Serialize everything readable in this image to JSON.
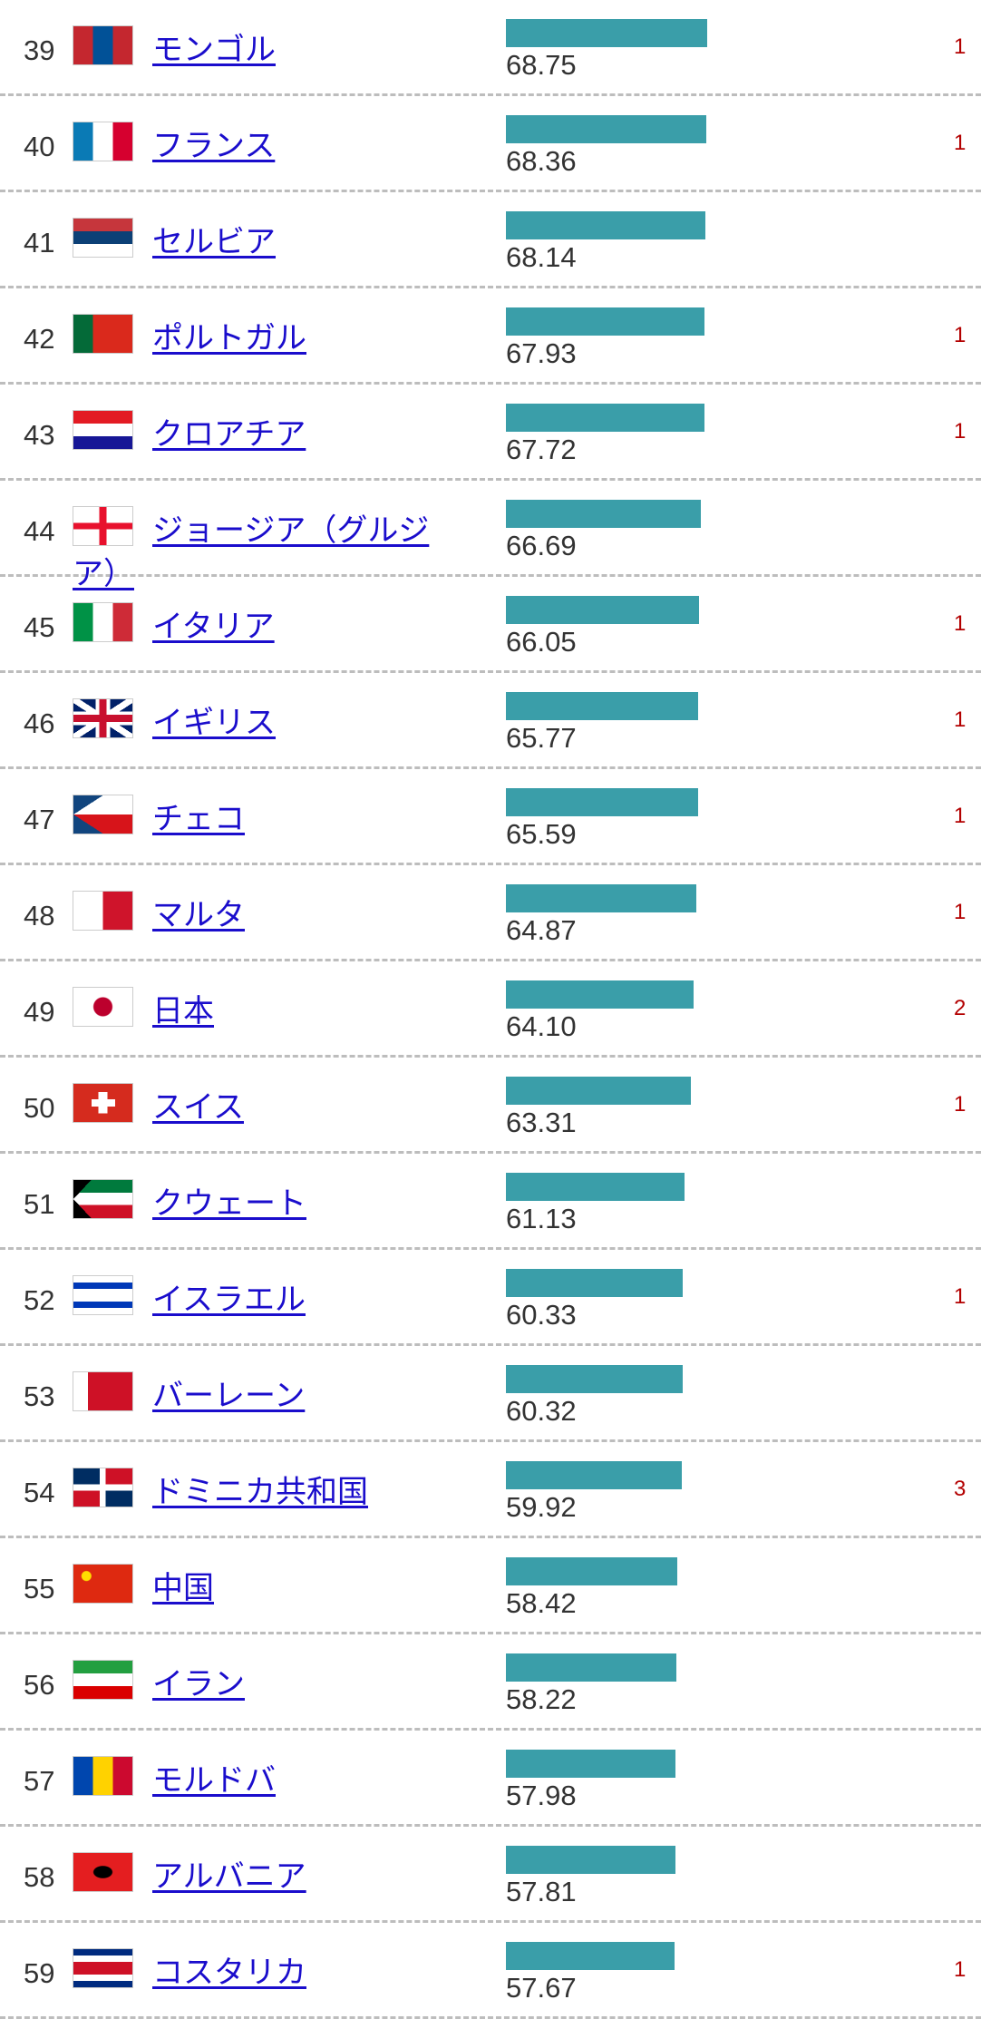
{
  "colors": {
    "bar": "#3a9ea9",
    "link": "#1a0dcc",
    "change": "#b30000"
  },
  "rows": [
    {
      "rank": "39",
      "name": "モンゴル",
      "value": "68.75",
      "change": "1",
      "flag": {
        "dir": "90deg",
        "colors": [
          "#c4272f",
          "#015197",
          "#c4272f"
        ]
      }
    },
    {
      "rank": "40",
      "name": "フランス",
      "value": "68.36",
      "change": "1",
      "flag": {
        "dir": "90deg",
        "colors": [
          "#0a7ab5",
          "#ffffff",
          "#d6002f"
        ]
      }
    },
    {
      "rank": "41",
      "name": "セルビア",
      "value": "68.14",
      "change": "",
      "flag": {
        "dir": "180deg",
        "colors": [
          "#c6363c",
          "#0c4076",
          "#ffffff"
        ]
      }
    },
    {
      "rank": "42",
      "name": "ポルトガル",
      "value": "67.93",
      "change": "1",
      "flag": {
        "dir": "90deg",
        "colors": [
          "#046a38",
          "#da291c",
          "#da291c"
        ]
      }
    },
    {
      "rank": "43",
      "name": "クロアチア",
      "value": "67.72",
      "change": "1",
      "flag": {
        "dir": "180deg",
        "colors": [
          "#e31b23",
          "#ffffff",
          "#171796"
        ]
      }
    },
    {
      "rank": "44",
      "name": "ジョージア（グルジア）",
      "value": "66.69",
      "change": "",
      "flag": {
        "dir": "cross",
        "colors": [
          "#ffffff",
          "#e8112d"
        ]
      }
    },
    {
      "rank": "45",
      "name": "イタリア",
      "value": "66.05",
      "change": "1",
      "flag": {
        "dir": "90deg",
        "colors": [
          "#009246",
          "#ffffff",
          "#ce2b37"
        ]
      }
    },
    {
      "rank": "46",
      "name": "イギリス",
      "value": "65.77",
      "change": "1",
      "flag": {
        "dir": "uk",
        "colors": [
          "#012169",
          "#ffffff",
          "#c8102e"
        ]
      }
    },
    {
      "rank": "47",
      "name": "チェコ",
      "value": "65.59",
      "change": "1",
      "flag": {
        "dir": "czech",
        "colors": [
          "#ffffff",
          "#d7141a",
          "#11457e"
        ]
      }
    },
    {
      "rank": "48",
      "name": "マルタ",
      "value": "64.87",
      "change": "1",
      "flag": {
        "dir": "90deg",
        "colors": [
          "#ffffff",
          "#cf142b"
        ]
      }
    },
    {
      "rank": "49",
      "name": "日本",
      "value": "64.10",
      "change": "2",
      "flag": {
        "dir": "japan",
        "colors": [
          "#ffffff",
          "#bc002d"
        ]
      }
    },
    {
      "rank": "50",
      "name": "スイス",
      "value": "63.31",
      "change": "1",
      "flag": {
        "dir": "swiss",
        "colors": [
          "#d52b1e",
          "#ffffff"
        ]
      }
    },
    {
      "rank": "51",
      "name": "クウェート",
      "value": "61.13",
      "change": "",
      "flag": {
        "dir": "kuwait",
        "colors": [
          "#007a3d",
          "#ffffff",
          "#ce1126",
          "#000000"
        ]
      }
    },
    {
      "rank": "52",
      "name": "イスラエル",
      "value": "60.33",
      "change": "1",
      "flag": {
        "dir": "180deg",
        "colors": [
          "#ffffff",
          "#0038b8",
          "#ffffff",
          "#ffffff",
          "#0038b8",
          "#ffffff"
        ]
      }
    },
    {
      "rank": "53",
      "name": "バーレーン",
      "value": "60.32",
      "change": "",
      "flag": {
        "dir": "90deg",
        "colors": [
          "#ffffff",
          "#ce1126",
          "#ce1126",
          "#ce1126"
        ]
      }
    },
    {
      "rank": "54",
      "name": "ドミニカ共和国",
      "value": "59.92",
      "change": "3",
      "flag": {
        "dir": "dominican",
        "colors": [
          "#002d62",
          "#ce1126",
          "#ffffff"
        ]
      }
    },
    {
      "rank": "55",
      "name": "中国",
      "value": "58.42",
      "change": "",
      "flag": {
        "dir": "china",
        "colors": [
          "#de2910",
          "#ffde00"
        ]
      }
    },
    {
      "rank": "56",
      "name": "イラン",
      "value": "58.22",
      "change": "",
      "flag": {
        "dir": "180deg",
        "colors": [
          "#239f40",
          "#ffffff",
          "#da0000"
        ]
      }
    },
    {
      "rank": "57",
      "name": "モルドバ",
      "value": "57.98",
      "change": "",
      "flag": {
        "dir": "90deg",
        "colors": [
          "#0046ae",
          "#ffd200",
          "#cc092f"
        ]
      }
    },
    {
      "rank": "58",
      "name": "アルバニア",
      "value": "57.81",
      "change": "",
      "flag": {
        "dir": "albania",
        "colors": [
          "#e41e20",
          "#000000"
        ]
      }
    },
    {
      "rank": "59",
      "name": "コスタリカ",
      "value": "57.67",
      "change": "1",
      "flag": {
        "dir": "180deg",
        "colors": [
          "#002b7f",
          "#ffffff",
          "#ce1126",
          "#ce1126",
          "#ffffff",
          "#002b7f"
        ]
      }
    }
  ]
}
